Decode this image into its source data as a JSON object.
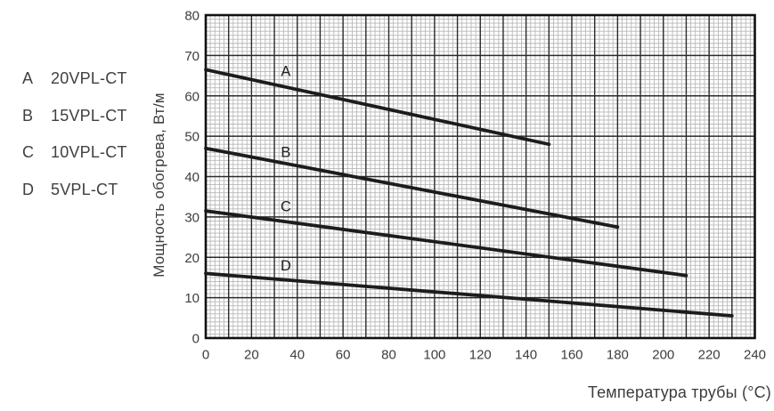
{
  "legend": {
    "items": [
      {
        "key": "A",
        "label": "20VPL-CT"
      },
      {
        "key": "B",
        "label": "15VPL-CT"
      },
      {
        "key": "C",
        "label": "10VPL-CT"
      },
      {
        "key": "D",
        "label": "5VPL-CT"
      }
    ]
  },
  "chart_data": {
    "type": "line",
    "title": "",
    "xlabel": "Температура трубы (°C)",
    "ylabel": "Мощность обогрева, Вт/м",
    "xlim": [
      0,
      240
    ],
    "ylim": [
      0,
      80
    ],
    "xticks": [
      0,
      20,
      40,
      60,
      80,
      100,
      120,
      140,
      160,
      180,
      200,
      220,
      240
    ],
    "yticks": [
      0,
      10,
      20,
      30,
      40,
      50,
      60,
      70,
      80
    ],
    "grid": {
      "minor_x_step": 2,
      "minor_y_step": 1,
      "major_x_step": 10,
      "major_y_step": 10
    },
    "legend_position": "left-outside",
    "colors": {
      "series_line": "#1c1c1c",
      "major_grid": "#2b2b2b",
      "minor_grid": "#b8b8b8",
      "border": "#111111",
      "text": "#3d3d3d"
    },
    "series": [
      {
        "name": "A",
        "cable": "20VPL-CT",
        "points": [
          [
            0,
            66.5
          ],
          [
            150,
            48
          ]
        ],
        "label_x": 35,
        "label_y": 66
      },
      {
        "name": "B",
        "cable": "15VPL-CT",
        "points": [
          [
            0,
            47
          ],
          [
            180,
            27.5
          ]
        ],
        "label_x": 35,
        "label_y": 46
      },
      {
        "name": "C",
        "cable": "10VPL-CT",
        "points": [
          [
            0,
            31.5
          ],
          [
            210,
            15.5
          ]
        ],
        "label_x": 35,
        "label_y": 32.5
      },
      {
        "name": "D",
        "cable": "5VPL-CT",
        "points": [
          [
            0,
            16
          ],
          [
            230,
            5.5
          ]
        ],
        "label_x": 35,
        "label_y": 17.8
      }
    ]
  }
}
